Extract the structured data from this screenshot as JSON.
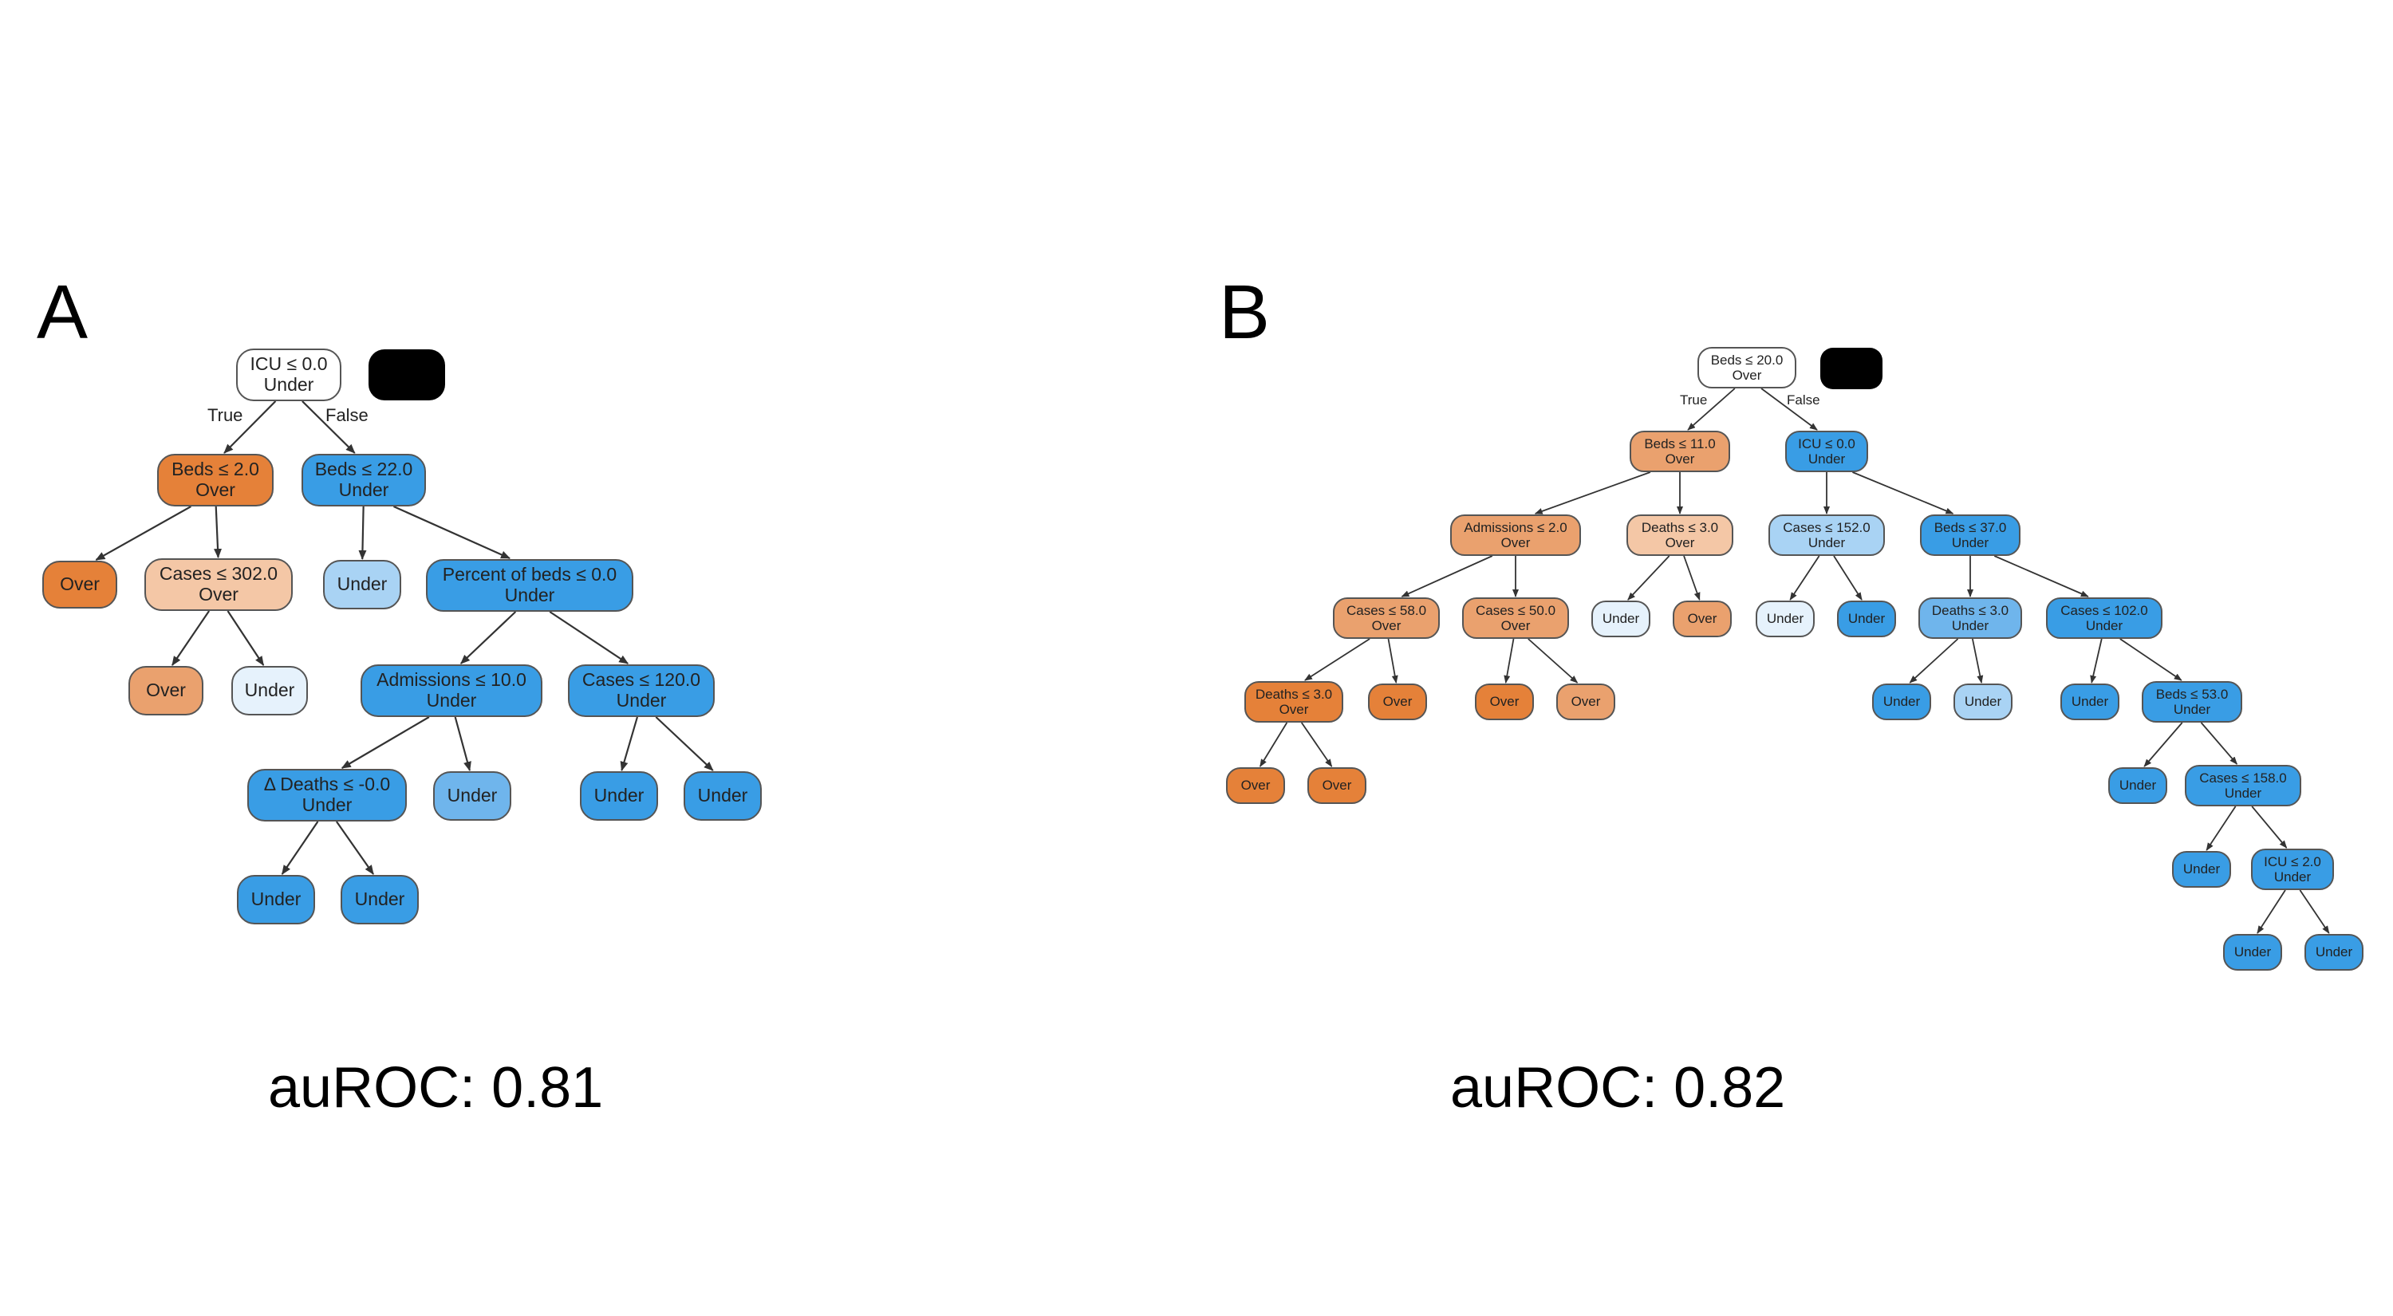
{
  "colors": {
    "over_strong": "#e58139",
    "over_medium": "#eaa16e",
    "over_light": "#f4c7a6",
    "white": "#ffffff",
    "under_faint": "#e6f2fc",
    "under_light": "#a9d3f4",
    "under_medium": "#6fb5ec",
    "under_strong": "#399de5",
    "edge": "#333333"
  },
  "panels": [
    {
      "id": "A",
      "letter": "A",
      "auroc": "auROC: 0.81",
      "root_edge_labels": {
        "true": "True",
        "false": "False"
      },
      "nodes": [
        {
          "id": "a0",
          "lines": [
            "ICU ≤ 0.0",
            "Under"
          ],
          "fill": "white"
        },
        {
          "id": "a1",
          "lines": [
            "Beds ≤ 2.0",
            "Over"
          ],
          "fill": "over_strong"
        },
        {
          "id": "a2",
          "lines": [
            "Beds ≤ 22.0",
            "Under"
          ],
          "fill": "under_strong"
        },
        {
          "id": "a3",
          "lines": [
            "Over"
          ],
          "fill": "over_strong"
        },
        {
          "id": "a4",
          "lines": [
            "Cases ≤ 302.0",
            "Over"
          ],
          "fill": "over_light"
        },
        {
          "id": "a5",
          "lines": [
            "Under"
          ],
          "fill": "under_light"
        },
        {
          "id": "a6",
          "lines": [
            "Percent of beds ≤ 0.0",
            "Under"
          ],
          "fill": "under_strong"
        },
        {
          "id": "a7",
          "lines": [
            "Over"
          ],
          "fill": "over_medium"
        },
        {
          "id": "a8",
          "lines": [
            "Under"
          ],
          "fill": "under_faint"
        },
        {
          "id": "a9",
          "lines": [
            "Admissions ≤ 10.0",
            "Under"
          ],
          "fill": "under_strong"
        },
        {
          "id": "a10",
          "lines": [
            "Cases ≤ 120.0",
            "Under"
          ],
          "fill": "under_strong"
        },
        {
          "id": "a11",
          "lines": [
            "Δ Deaths ≤ -0.0",
            "Under"
          ],
          "fill": "under_strong"
        },
        {
          "id": "a12",
          "lines": [
            "Under"
          ],
          "fill": "under_medium"
        },
        {
          "id": "a13",
          "lines": [
            "Under"
          ],
          "fill": "under_strong"
        },
        {
          "id": "a14",
          "lines": [
            "Under"
          ],
          "fill": "under_strong"
        },
        {
          "id": "a15",
          "lines": [
            "Under"
          ],
          "fill": "under_strong"
        },
        {
          "id": "a16",
          "lines": [
            "Under"
          ],
          "fill": "under_strong"
        }
      ],
      "edges": [
        [
          "a0",
          "a1"
        ],
        [
          "a0",
          "a2"
        ],
        [
          "a1",
          "a3"
        ],
        [
          "a1",
          "a4"
        ],
        [
          "a2",
          "a5"
        ],
        [
          "a2",
          "a6"
        ],
        [
          "a4",
          "a7"
        ],
        [
          "a4",
          "a8"
        ],
        [
          "a6",
          "a9"
        ],
        [
          "a6",
          "a10"
        ],
        [
          "a9",
          "a11"
        ],
        [
          "a9",
          "a12"
        ],
        [
          "a10",
          "a13"
        ],
        [
          "a10",
          "a14"
        ],
        [
          "a11",
          "a15"
        ],
        [
          "a11",
          "a16"
        ]
      ]
    },
    {
      "id": "B",
      "letter": "B",
      "auroc": "auROC: 0.82",
      "root_edge_labels": {
        "true": "True",
        "false": "False"
      },
      "nodes": [
        {
          "id": "b0",
          "lines": [
            "Beds ≤ 20.0",
            "Over"
          ],
          "fill": "white"
        },
        {
          "id": "b1",
          "lines": [
            "Beds ≤ 11.0",
            "Over"
          ],
          "fill": "over_medium"
        },
        {
          "id": "b2",
          "lines": [
            "ICU ≤ 0.0",
            "Under"
          ],
          "fill": "under_strong"
        },
        {
          "id": "b3",
          "lines": [
            "Admissions ≤ 2.0",
            "Over"
          ],
          "fill": "over_medium"
        },
        {
          "id": "b4",
          "lines": [
            "Deaths ≤ 3.0",
            "Over"
          ],
          "fill": "over_light"
        },
        {
          "id": "b5",
          "lines": [
            "Cases ≤ 152.0",
            "Under"
          ],
          "fill": "under_light"
        },
        {
          "id": "b6",
          "lines": [
            "Beds ≤ 37.0",
            "Under"
          ],
          "fill": "under_strong"
        },
        {
          "id": "b7",
          "lines": [
            "Cases ≤ 58.0",
            "Over"
          ],
          "fill": "over_medium"
        },
        {
          "id": "b8",
          "lines": [
            "Cases ≤ 50.0",
            "Over"
          ],
          "fill": "over_medium"
        },
        {
          "id": "b9",
          "lines": [
            "Under"
          ],
          "fill": "under_faint"
        },
        {
          "id": "b10",
          "lines": [
            "Over"
          ],
          "fill": "over_medium"
        },
        {
          "id": "b11",
          "lines": [
            "Under"
          ],
          "fill": "under_faint"
        },
        {
          "id": "b12",
          "lines": [
            "Under"
          ],
          "fill": "under_strong"
        },
        {
          "id": "b13",
          "lines": [
            "Deaths ≤ 3.0",
            "Under"
          ],
          "fill": "under_medium"
        },
        {
          "id": "b14",
          "lines": [
            "Cases ≤ 102.0",
            "Under"
          ],
          "fill": "under_strong"
        },
        {
          "id": "b15",
          "lines": [
            "Deaths ≤ 3.0",
            "Over"
          ],
          "fill": "over_strong"
        },
        {
          "id": "b16",
          "lines": [
            "Over"
          ],
          "fill": "over_strong"
        },
        {
          "id": "b17",
          "lines": [
            "Over"
          ],
          "fill": "over_strong"
        },
        {
          "id": "b18",
          "lines": [
            "Over"
          ],
          "fill": "over_medium"
        },
        {
          "id": "b19",
          "lines": [
            "Under"
          ],
          "fill": "under_strong"
        },
        {
          "id": "b20",
          "lines": [
            "Under"
          ],
          "fill": "under_light"
        },
        {
          "id": "b21",
          "lines": [
            "Under"
          ],
          "fill": "under_strong"
        },
        {
          "id": "b22",
          "lines": [
            "Beds ≤ 53.0",
            "Under"
          ],
          "fill": "under_strong"
        },
        {
          "id": "b23",
          "lines": [
            "Over"
          ],
          "fill": "over_strong"
        },
        {
          "id": "b24",
          "lines": [
            "Over"
          ],
          "fill": "over_strong"
        },
        {
          "id": "b25",
          "lines": [
            "Under"
          ],
          "fill": "under_strong"
        },
        {
          "id": "b26",
          "lines": [
            "Cases ≤ 158.0",
            "Under"
          ],
          "fill": "under_strong"
        },
        {
          "id": "b27",
          "lines": [
            "Under"
          ],
          "fill": "under_strong"
        },
        {
          "id": "b28",
          "lines": [
            "ICU ≤ 2.0",
            "Under"
          ],
          "fill": "under_strong"
        },
        {
          "id": "b29",
          "lines": [
            "Under"
          ],
          "fill": "under_strong"
        },
        {
          "id": "b30",
          "lines": [
            "Under"
          ],
          "fill": "under_strong"
        }
      ],
      "edges": [
        [
          "b0",
          "b1"
        ],
        [
          "b0",
          "b2"
        ],
        [
          "b1",
          "b3"
        ],
        [
          "b1",
          "b4"
        ],
        [
          "b2",
          "b5"
        ],
        [
          "b2",
          "b6"
        ],
        [
          "b3",
          "b7"
        ],
        [
          "b3",
          "b8"
        ],
        [
          "b4",
          "b9"
        ],
        [
          "b4",
          "b10"
        ],
        [
          "b5",
          "b11"
        ],
        [
          "b5",
          "b12"
        ],
        [
          "b6",
          "b13"
        ],
        [
          "b6",
          "b14"
        ],
        [
          "b7",
          "b15"
        ],
        [
          "b7",
          "b16"
        ],
        [
          "b8",
          "b17"
        ],
        [
          "b8",
          "b18"
        ],
        [
          "b13",
          "b19"
        ],
        [
          "b13",
          "b20"
        ],
        [
          "b14",
          "b21"
        ],
        [
          "b14",
          "b22"
        ],
        [
          "b15",
          "b23"
        ],
        [
          "b15",
          "b24"
        ],
        [
          "b22",
          "b25"
        ],
        [
          "b22",
          "b26"
        ],
        [
          "b26",
          "b27"
        ],
        [
          "b26",
          "b28"
        ],
        [
          "b28",
          "b29"
        ],
        [
          "b28",
          "b30"
        ]
      ]
    }
  ]
}
